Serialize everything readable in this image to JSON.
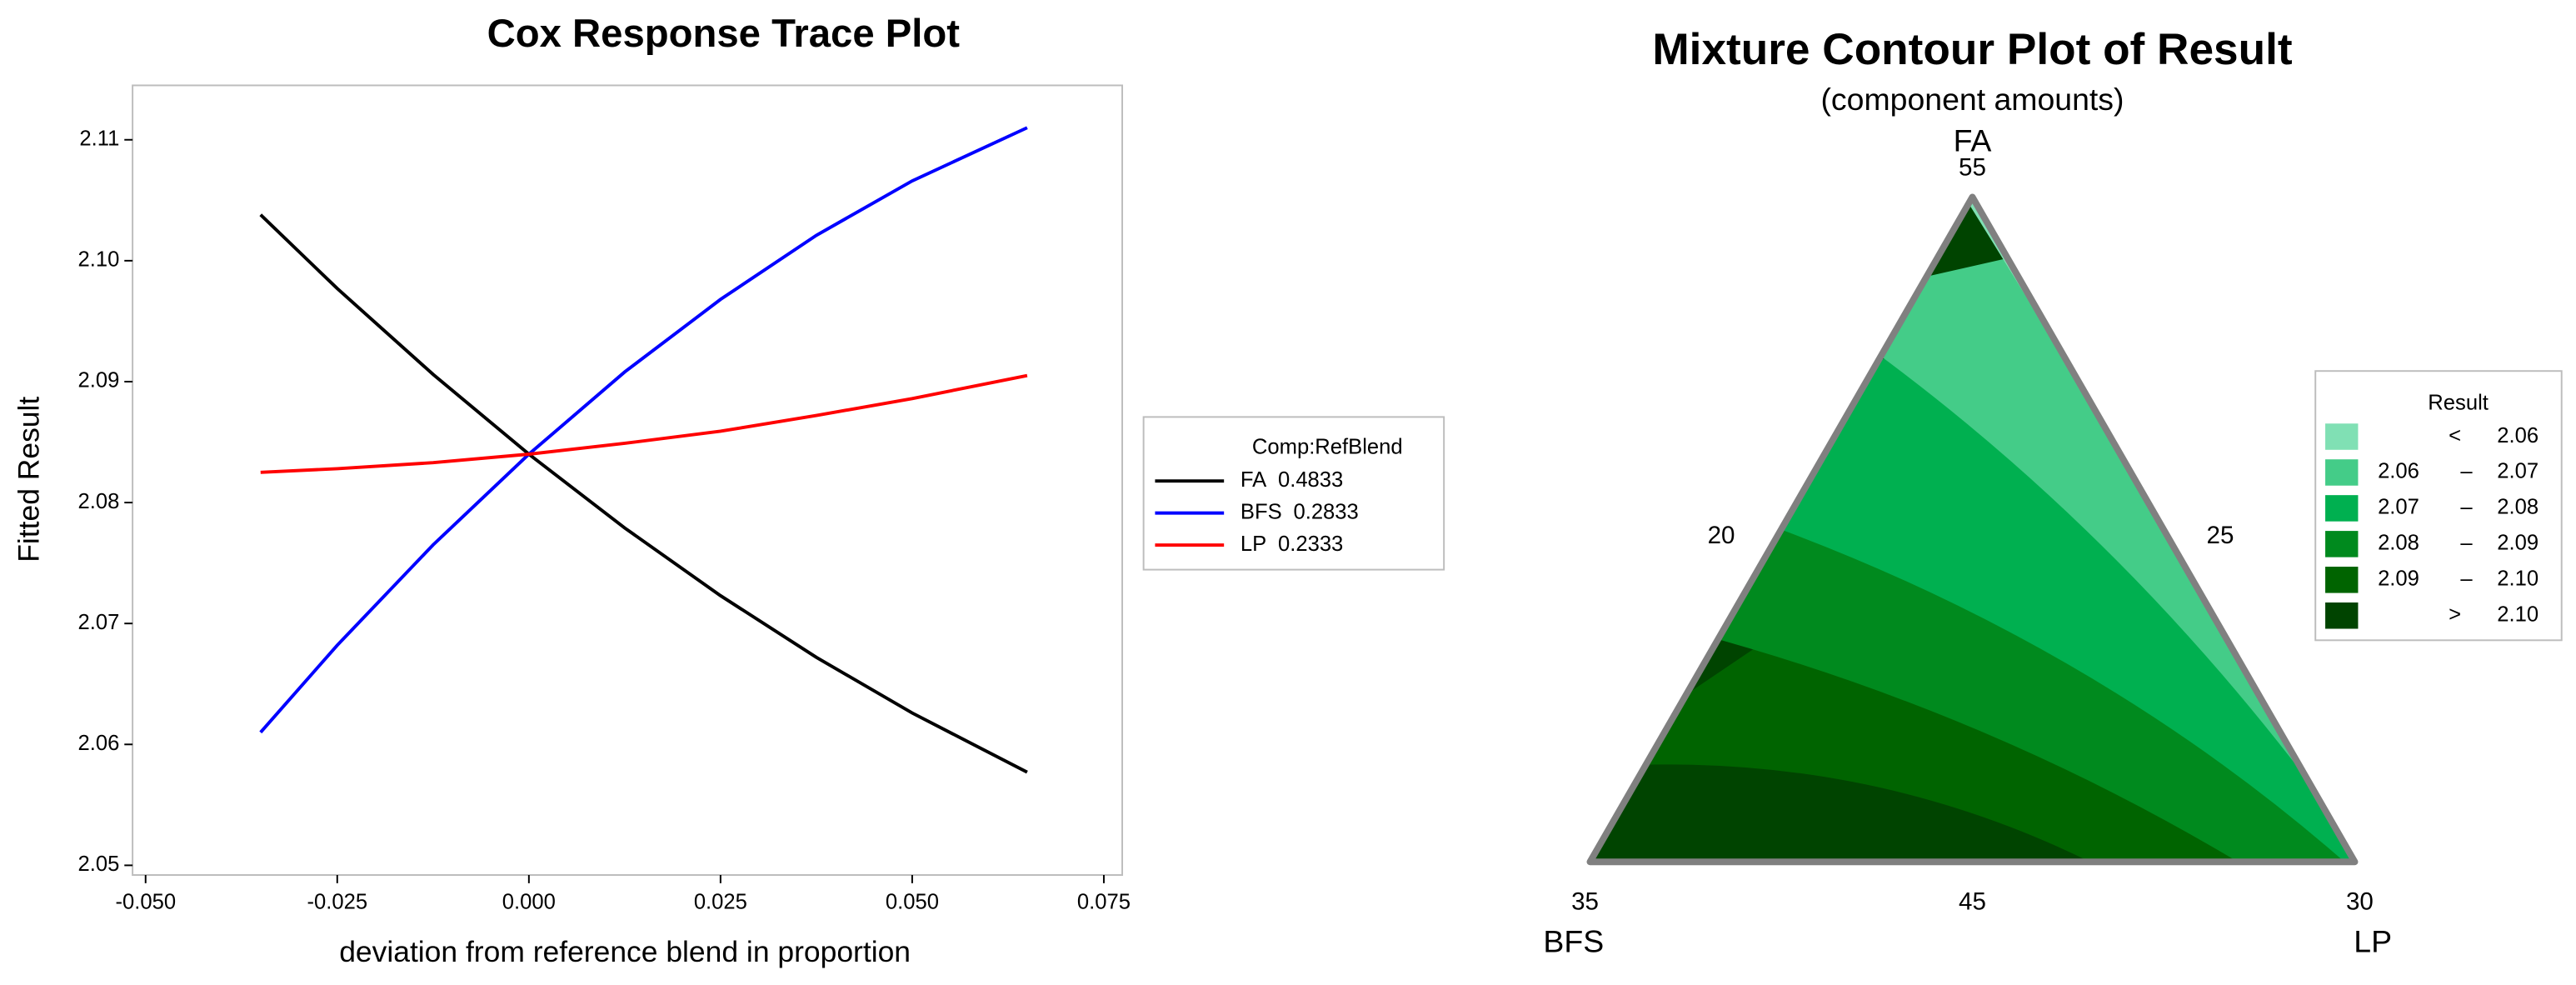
{
  "chart_data": [
    {
      "type": "line",
      "title": "Cox Response Trace Plot",
      "x_label": "deviation from reference blend in proportion",
      "y_label": "Fitted Result",
      "x": [
        -0.035,
        -0.025,
        -0.0125,
        0,
        0.0125,
        0.025,
        0.0375,
        0.05,
        0.065
      ],
      "xlim": [
        -0.0517,
        0.0774
      ],
      "xticks": [
        {
          "value": -0.05,
          "label": "-0.050"
        },
        {
          "value": -0.025,
          "label": "-0.025"
        },
        {
          "value": 0,
          "label": "0.000"
        },
        {
          "value": 0.025,
          "label": "0.025"
        },
        {
          "value": 0.05,
          "label": "0.050"
        },
        {
          "value": 0.075,
          "label": "0.075"
        }
      ],
      "ylim": [
        2.0492,
        2.1145
      ],
      "yticks": [
        2.05,
        2.06,
        2.07,
        2.08,
        2.09,
        {
          "value": 2.1,
          "label": "2.10"
        },
        2.11
      ],
      "grid": false,
      "legend_title": "Comp:RefBlend",
      "legend_position": "right",
      "series": [
        {
          "name": "FA",
          "ref_blend": 0.4833,
          "color": "#000000",
          "values": [
            2.1038,
            2.0977,
            2.0906,
            2.084,
            2.0779,
            2.0723,
            2.0672,
            2.0626,
            2.0577
          ]
        },
        {
          "name": "BFS",
          "ref_blend": 0.2833,
          "color": "#0000ff",
          "values": [
            2.061,
            2.0682,
            2.0765,
            2.084,
            2.0908,
            2.0968,
            2.1021,
            2.1066,
            2.111
          ]
        },
        {
          "name": "LP",
          "ref_blend": 0.2333,
          "color": "#ff0000",
          "values": [
            2.0825,
            2.0828,
            2.0833,
            2.084,
            2.0849,
            2.0859,
            2.0872,
            2.0886,
            2.0905
          ]
        }
      ]
    },
    {
      "type": "ternary_contour",
      "title": "Mixture Contour Plot of Result",
      "subtitle": "(component amounts)",
      "components": [
        {
          "name": "FA",
          "corner_value": 55
        },
        {
          "name": "BFS",
          "corner_value": 35
        },
        {
          "name": "LP",
          "corner_value": 30
        }
      ],
      "edge_labels": {
        "left": 20,
        "right": 25,
        "bottom": 45
      },
      "legend_title": "Result",
      "levels": [
        2.06,
        2.07,
        2.08,
        2.09,
        2.1
      ],
      "level_labels": [
        "2.06",
        "2.07",
        "2.08",
        "2.09",
        "2.10"
      ],
      "below": "<",
      "range_sep": "–",
      "above": ">",
      "colors": [
        "#80e0b4",
        "#44cc88",
        "#00b050",
        "#008a1e",
        "#006400",
        "#004400"
      ]
    }
  ]
}
